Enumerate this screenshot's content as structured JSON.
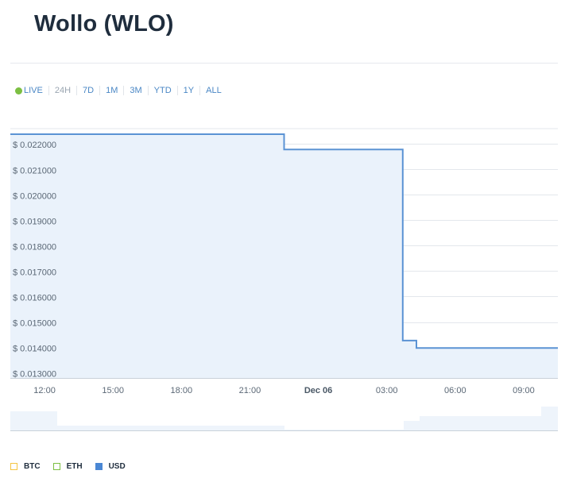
{
  "title": "Wollo (WLO)",
  "range_selector": {
    "live_label": "LIVE",
    "options": [
      "24H",
      "7D",
      "1M",
      "3M",
      "YTD",
      "1Y",
      "ALL"
    ],
    "active": "LIVE"
  },
  "colors": {
    "line": "#5b93d4",
    "fill": "#eaf2fb",
    "grid": "#e3e7ec",
    "tick_text": "#5b6876",
    "navigator_fill": "#eef4fb",
    "btc": "#f5c542",
    "eth": "#7cbf42",
    "usd": "#4a87d4"
  },
  "chart_data": {
    "type": "area",
    "title": "",
    "ylabel": "",
    "xlabel": "",
    "y_tick_labels": [
      "$ 0.013000",
      "$ 0.014000",
      "$ 0.015000",
      "$ 0.016000",
      "$ 0.017000",
      "$ 0.018000",
      "$ 0.019000",
      "$ 0.020000",
      "$ 0.021000",
      "$ 0.022000"
    ],
    "y_ticks": [
      0.013,
      0.014,
      0.015,
      0.016,
      0.017,
      0.018,
      0.019,
      0.02,
      0.021,
      0.022
    ],
    "ylim": [
      0.0128,
      0.0226
    ],
    "x_tick_labels": [
      "12:00",
      "15:00",
      "18:00",
      "21:00",
      "Dec 06",
      "03:00",
      "06:00",
      "09:00"
    ],
    "x_ticks": [
      12,
      15,
      18,
      21,
      24,
      27,
      30,
      33
    ],
    "x_bold_label": "Dec 06",
    "x_unit": "hours (Dec 05 00:00 = 0)",
    "xlim": [
      10.5,
      34.5
    ],
    "series": [
      {
        "name": "USD",
        "step": true,
        "x": [
          10.5,
          22.5,
          27.7,
          28.3,
          34.5
        ],
        "values": [
          0.02238,
          0.02178,
          0.01427,
          0.01398,
          0.01398
        ]
      }
    ]
  },
  "legend": [
    {
      "label": "BTC",
      "active": false
    },
    {
      "label": "ETH",
      "active": false
    },
    {
      "label": "USD",
      "active": true
    }
  ]
}
